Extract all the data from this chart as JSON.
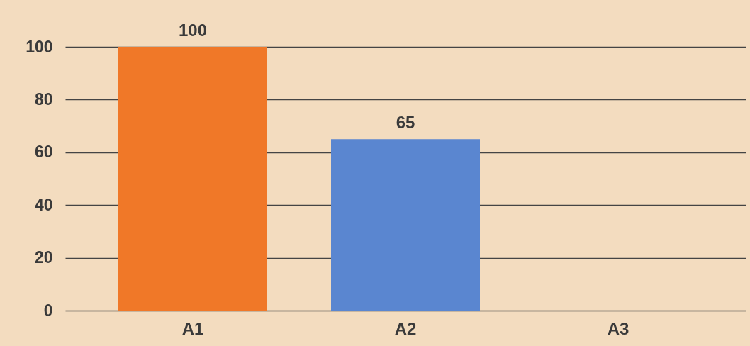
{
  "chart_data": {
    "type": "bar",
    "categories": [
      "A1",
      "A2",
      "A3"
    ],
    "values": [
      100,
      65,
      null
    ],
    "colors": [
      "#f07828",
      "#5a86d0",
      null
    ],
    "ylim": [
      0,
      100
    ],
    "yticks": [
      0,
      20,
      40,
      60,
      80,
      100
    ],
    "grid": "y",
    "data_labels": true
  }
}
